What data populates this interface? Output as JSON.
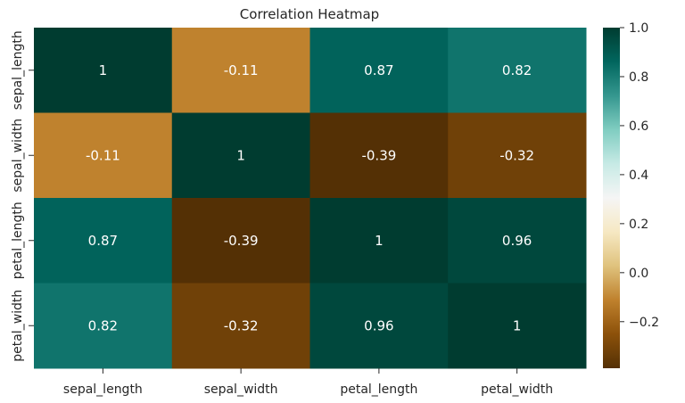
{
  "chart_data": {
    "type": "heatmap",
    "title": "Correlation Heatmap",
    "xlabels": [
      "sepal_length",
      "sepal_width",
      "petal_length",
      "petal_width"
    ],
    "ylabels": [
      "sepal_length",
      "sepal_width",
      "petal_length",
      "petal_width"
    ],
    "annotations": [
      [
        "1",
        "-0.11",
        "0.87",
        "0.82"
      ],
      [
        "-0.11",
        "1",
        "-0.39",
        "-0.32"
      ],
      [
        "0.87",
        "-0.39",
        "1",
        "0.96"
      ],
      [
        "0.82",
        "-0.32",
        "0.96",
        "1"
      ]
    ],
    "values": [
      [
        1.0,
        -0.11,
        0.87,
        0.82
      ],
      [
        -0.11,
        1.0,
        -0.39,
        -0.32
      ],
      [
        0.87,
        -0.39,
        1.0,
        0.96
      ],
      [
        0.82,
        -0.32,
        0.96,
        1.0
      ]
    ],
    "colormap": "BrBG",
    "color_range": [
      -0.39,
      1.0
    ],
    "colorbar_ticks": [
      "1.0",
      "0.8",
      "0.6",
      "0.4",
      "0.2",
      "0.0",
      "−0.2"
    ],
    "colorbar_tick_values": [
      1.0,
      0.8,
      0.6,
      0.4,
      0.2,
      0.0,
      -0.2
    ],
    "annotation_color": "#ffffff"
  }
}
